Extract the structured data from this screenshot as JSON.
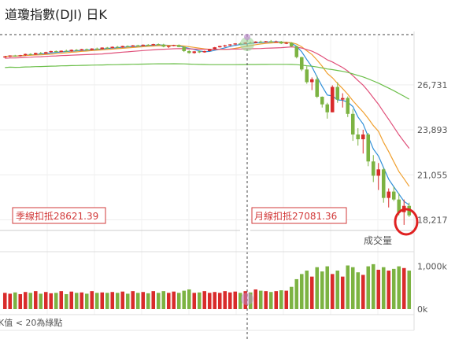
{
  "header": {
    "title": "道瓊指數(DJI) 日K"
  },
  "colors": {
    "up": "#d92b2b",
    "down": "#7cb342",
    "ma_short": "#2f8fd8",
    "ma_mid": "#f0a030",
    "ma_long": "#e0507a",
    "ma_longest": "#6cbf4a",
    "tag": "#d23a3a",
    "highlight": "#e02020"
  },
  "markers": {
    "season_label": "季線扣抵28621.39",
    "month_label": "月線扣抵27081.36"
  },
  "volume_panel": {
    "title": "成交量"
  },
  "footer": {
    "note": "K值 < 20為綠點"
  },
  "chart_data": {
    "type": "candlestick",
    "title": "道瓊指數(DJI) 日K",
    "yticks": [
      "26,731",
      "23,893",
      "21,055",
      "18,217"
    ],
    "yrange": [
      17400,
      29800
    ],
    "volume_ticks": [
      "1,000k",
      "0k"
    ],
    "volume_range": [
      0,
      1250
    ],
    "candles": [
      [
        28500,
        28560,
        28420,
        28520,
        380
      ],
      [
        28520,
        28600,
        28480,
        28580,
        360
      ],
      [
        28580,
        28620,
        28500,
        28540,
        390
      ],
      [
        28540,
        28620,
        28520,
        28600,
        350
      ],
      [
        28600,
        28700,
        28560,
        28680,
        400
      ],
      [
        28680,
        28720,
        28600,
        28640,
        380
      ],
      [
        28640,
        28760,
        28620,
        28740,
        420
      ],
      [
        28740,
        28800,
        28680,
        28700,
        360
      ],
      [
        28700,
        28820,
        28680,
        28790,
        400
      ],
      [
        28790,
        28880,
        28760,
        28860,
        370
      ],
      [
        28860,
        28900,
        28780,
        28800,
        380
      ],
      [
        28800,
        28900,
        28790,
        28880,
        420
      ],
      [
        28880,
        28950,
        28820,
        28840,
        350
      ],
      [
        28840,
        28960,
        28820,
        28940,
        410
      ],
      [
        28940,
        28980,
        28860,
        28900,
        380
      ],
      [
        28900,
        29000,
        28880,
        28980,
        390
      ],
      [
        28980,
        29020,
        28900,
        28930,
        360
      ],
      [
        28930,
        29040,
        28900,
        29020,
        420
      ],
      [
        29020,
        29080,
        28960,
        28990,
        380
      ],
      [
        28990,
        29100,
        28970,
        29080,
        390
      ],
      [
        29080,
        29120,
        29020,
        29050,
        380
      ],
      [
        29050,
        29150,
        29030,
        29130,
        400
      ],
      [
        29130,
        29180,
        29060,
        29090,
        380
      ],
      [
        29090,
        29200,
        29070,
        29180,
        410
      ],
      [
        29180,
        29220,
        29120,
        29150,
        360
      ],
      [
        29150,
        29240,
        29130,
        29220,
        420
      ],
      [
        29220,
        29260,
        29160,
        29190,
        380
      ],
      [
        29190,
        29280,
        29170,
        29260,
        400
      ],
      [
        29260,
        29300,
        29200,
        29230,
        370
      ],
      [
        29230,
        29320,
        29200,
        29300,
        420
      ],
      [
        29300,
        29340,
        29240,
        29270,
        380
      ],
      [
        29270,
        29320,
        29100,
        29140,
        420
      ],
      [
        29140,
        29200,
        29050,
        29180,
        380
      ],
      [
        29180,
        29260,
        29160,
        29240,
        410
      ],
      [
        29240,
        29280,
        29100,
        29120,
        380
      ],
      [
        29120,
        29160,
        28800,
        28860,
        430
      ],
      [
        28860,
        28920,
        28700,
        28740,
        460
      ],
      [
        28740,
        28860,
        28700,
        28840,
        380
      ],
      [
        28840,
        28900,
        28740,
        28780,
        390
      ],
      [
        28780,
        28880,
        28760,
        28860,
        420
      ],
      [
        28860,
        29000,
        28840,
        28980,
        380
      ],
      [
        28980,
        29120,
        28960,
        29100,
        400
      ],
      [
        29100,
        29200,
        29080,
        29180,
        380
      ],
      [
        29180,
        29260,
        29100,
        29220,
        420
      ],
      [
        29220,
        29300,
        29180,
        29280,
        390
      ],
      [
        29280,
        29360,
        29240,
        29340,
        410
      ],
      [
        29340,
        29400,
        29280,
        29320,
        380
      ],
      [
        29320,
        29420,
        29300,
        29400,
        420
      ],
      [
        29400,
        29460,
        29340,
        29380,
        390
      ],
      [
        29380,
        29480,
        29360,
        29460,
        460
      ],
      [
        29460,
        29520,
        29380,
        29420,
        430
      ],
      [
        29420,
        29500,
        29400,
        29480,
        420
      ],
      [
        29480,
        29560,
        29420,
        29440,
        400
      ],
      [
        29440,
        29520,
        29400,
        29460,
        420
      ],
      [
        29460,
        29500,
        29300,
        29340,
        440
      ],
      [
        29340,
        29420,
        29300,
        29380,
        430
      ],
      [
        29380,
        29420,
        29120,
        29160,
        520
      ],
      [
        29160,
        29200,
        28400,
        28480,
        700
      ],
      [
        28480,
        28500,
        27600,
        27700,
        820
      ],
      [
        27700,
        27900,
        26800,
        26900,
        900
      ],
      [
        26900,
        27200,
        26400,
        27080,
        760
      ],
      [
        27080,
        27300,
        25900,
        25980,
        980
      ],
      [
        25980,
        26000,
        25300,
        25500,
        880
      ],
      [
        25500,
        25600,
        24600,
        25000,
        1000
      ],
      [
        25000,
        26700,
        25000,
        26600,
        820
      ],
      [
        26600,
        26900,
        25600,
        25800,
        900
      ],
      [
        25800,
        26200,
        25300,
        25900,
        760
      ],
      [
        25900,
        26000,
        24700,
        24900,
        1020
      ],
      [
        24900,
        25200,
        23200,
        23600,
        980
      ],
      [
        23600,
        24000,
        22900,
        23300,
        860
      ],
      [
        23300,
        23900,
        22400,
        23600,
        800
      ],
      [
        23600,
        23700,
        21600,
        21900,
        1000
      ],
      [
        21900,
        22300,
        20600,
        21000,
        1050
      ],
      [
        21000,
        21800,
        20100,
        21400,
        920
      ],
      [
        21400,
        21500,
        19300,
        19600,
        980
      ],
      [
        19600,
        20200,
        19000,
        20000,
        900
      ],
      [
        20000,
        20300,
        19400,
        19500,
        940
      ],
      [
        19500,
        19900,
        18500,
        18700,
        1000
      ],
      [
        18700,
        19500,
        17900,
        19100,
        960
      ],
      [
        19100,
        19300,
        18400,
        18500,
        900
      ]
    ],
    "moving_averages": [
      {
        "color": "#2f8fd8"
      },
      {
        "color": "#f0a030"
      },
      {
        "color": "#e0507a"
      },
      {
        "color": "#6cbf4a"
      }
    ]
  }
}
